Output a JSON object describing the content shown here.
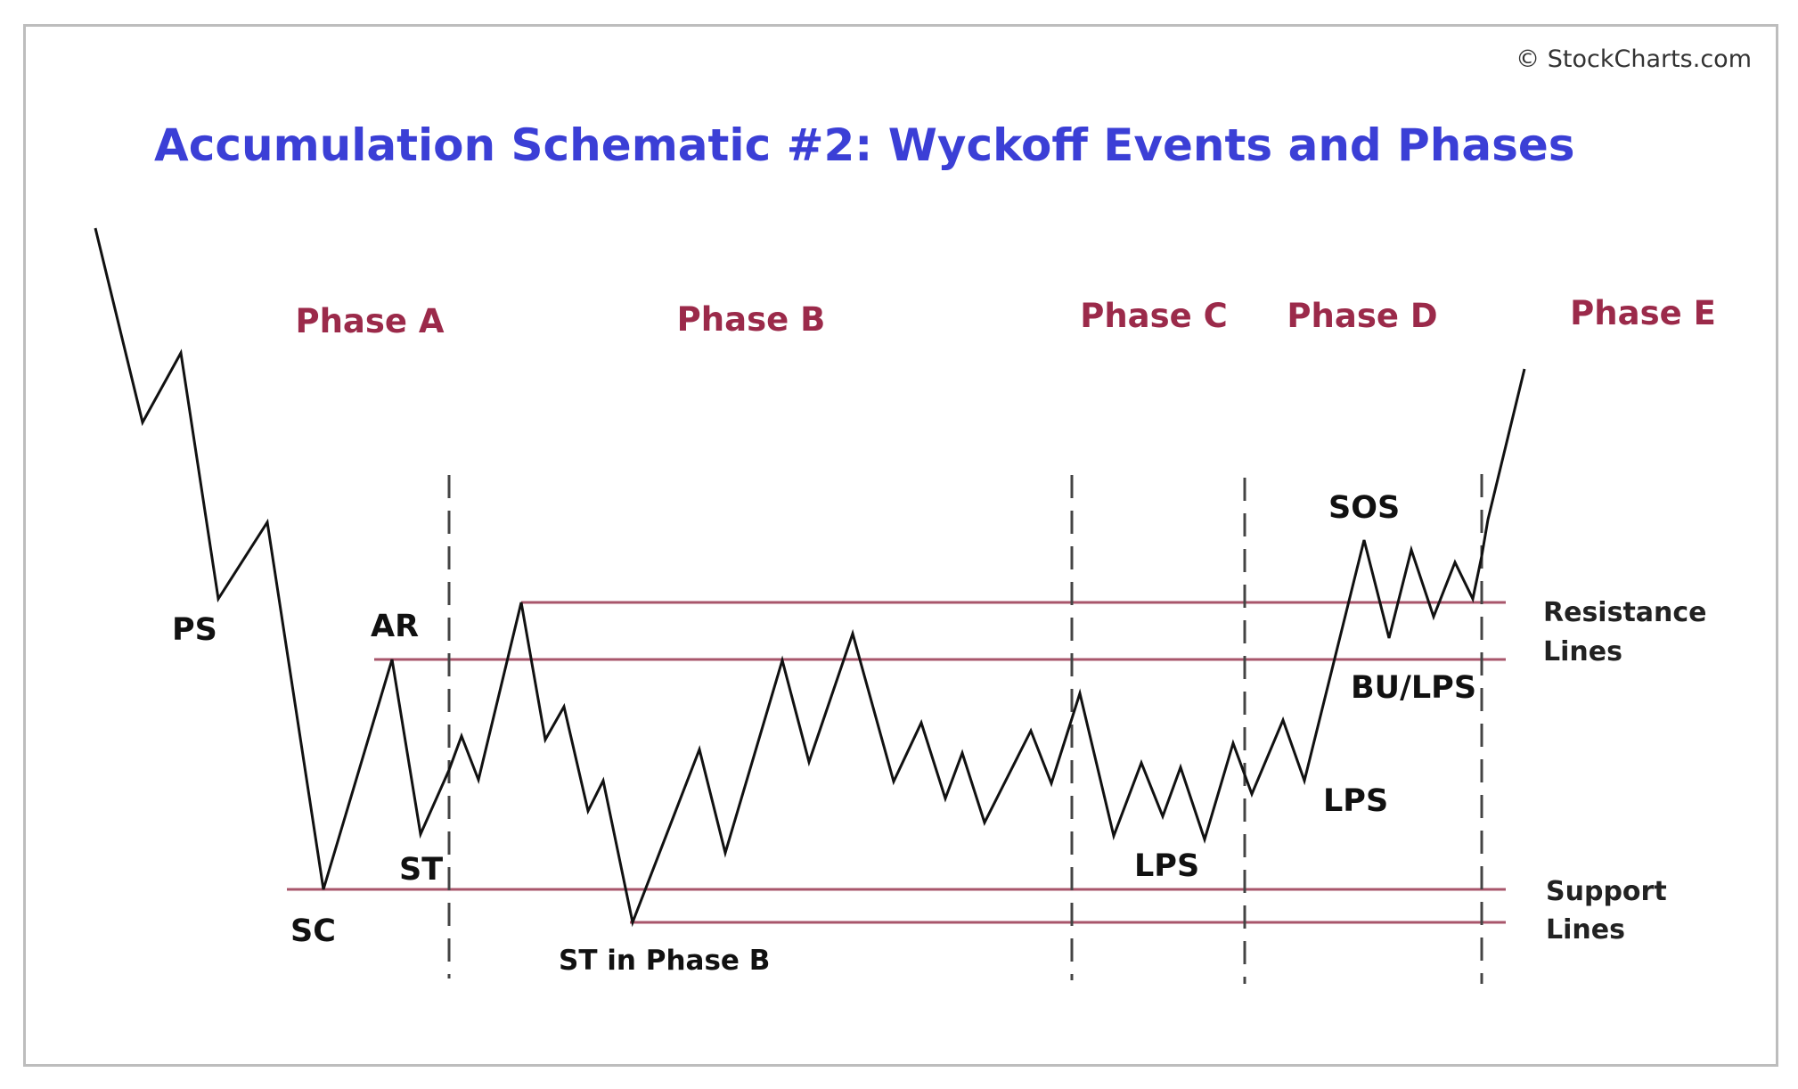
{
  "copyright": "© StockCharts.com",
  "title": "Accumulation Schematic #2: Wyckoff Events and Phases",
  "phases": [
    "Phase A",
    "Phase B",
    "Phase C",
    "Phase D",
    "Phase E"
  ],
  "events": {
    "ps": "PS",
    "ar": "AR",
    "sc": "SC",
    "st": "ST",
    "st_phase_b": "ST in Phase B",
    "lps_c": "LPS",
    "lps_d": "LPS",
    "sos": "SOS",
    "bu_lps": "BU/LPS"
  },
  "side_labels": {
    "resistance_1": "Resistance",
    "resistance_2": "Lines",
    "support_1": "Support",
    "support_2": "Lines"
  },
  "colors": {
    "title": "#3b3fd6",
    "phase": "#9b2a4a",
    "level_line": "#a8566b",
    "price_line": "#111111"
  }
}
